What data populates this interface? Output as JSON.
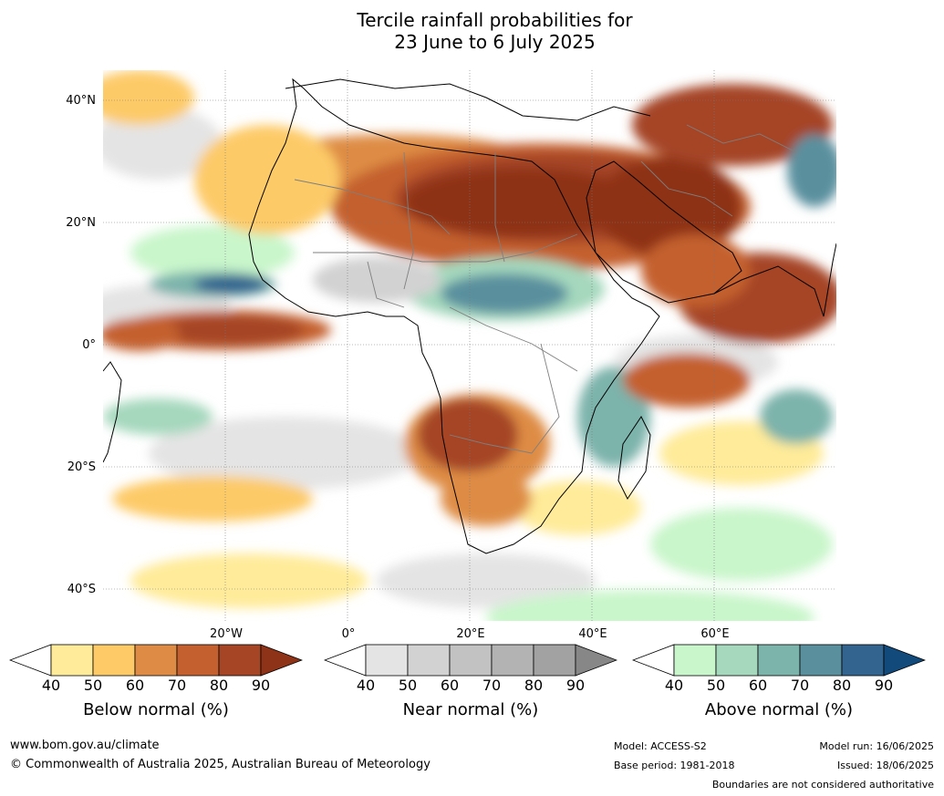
{
  "title": {
    "line1": "Tercile rainfall probabilities for",
    "line2": "23 June to 6 July 2025"
  },
  "map": {
    "lat_labels": [
      "40°N",
      "20°N",
      "0°",
      "20°S",
      "40°S"
    ],
    "lon_labels": [
      "20°W",
      "0°",
      "20°E",
      "40°E",
      "60°E"
    ],
    "lat_values": [
      40,
      20,
      0,
      -20,
      -40
    ],
    "lon_values": [
      -20,
      0,
      20,
      40,
      60
    ],
    "extent": {
      "lon_min": -40,
      "lon_max": 80,
      "lat_min": -45,
      "lat_max": 45
    }
  },
  "colorbars": [
    {
      "title": "Below normal (%)",
      "ticks": [
        "40",
        "50",
        "60",
        "70",
        "80",
        "90"
      ],
      "colors": [
        "#ffeb99",
        "#fdca67",
        "#de8c45",
        "#c4602f",
        "#a54525",
        "#8e3218"
      ]
    },
    {
      "title": "Near normal (%)",
      "ticks": [
        "40",
        "50",
        "60",
        "70",
        "80",
        "90"
      ],
      "colors": [
        "#e4e4e4",
        "#d2d2d2",
        "#c2c2c2",
        "#b3b3b3",
        "#a2a2a2",
        "#878787"
      ]
    },
    {
      "title": "Above normal (%)",
      "ticks": [
        "40",
        "50",
        "60",
        "70",
        "80",
        "90"
      ],
      "colors": [
        "#c9f6cb",
        "#a5d8bd",
        "#7cb3ab",
        "#5a909e",
        "#33638f",
        "#124a7c"
      ]
    }
  ],
  "footer": {
    "website": "www.bom.gov.au/climate",
    "copyright": "© Commonwealth of Australia 2025, Australian Bureau of Meteorology",
    "model": "Model: ACCESS-S2",
    "base_period": "Base period: 1981-2018",
    "model_run": "Model run: 16/06/2025",
    "issued": "Issued: 18/06/2025",
    "disclaimer": "Boundaries are not considered authoritative"
  }
}
